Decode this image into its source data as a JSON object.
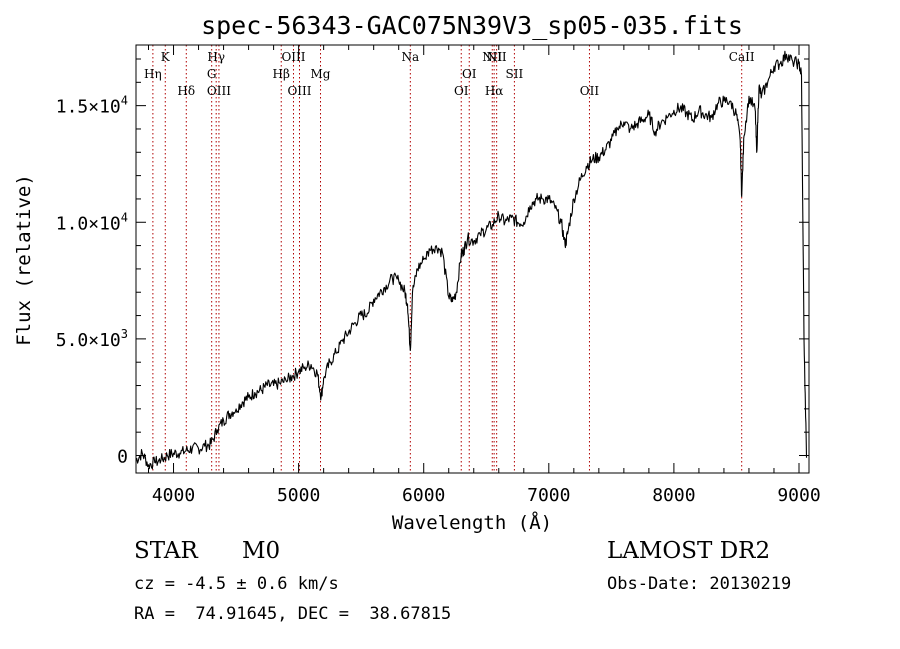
{
  "chart_data": {
    "type": "line",
    "title": "spec-56343-GAC075N39V3_sp05-035.fits",
    "xlabel": "Wavelength (Å)",
    "ylabel": "Flux (relative)",
    "xlim": [
      3700,
      9080
    ],
    "ylim": [
      -750,
      17600
    ],
    "x_ticks": [
      4000,
      5000,
      6000,
      7000,
      8000,
      9000
    ],
    "x_tick_labels": [
      "4000",
      "5000",
      "6000",
      "7000",
      "8000",
      "9000"
    ],
    "y_ticks": [
      0,
      5000,
      10000,
      15000
    ],
    "y_tick_labels": [
      {
        "base": "0",
        "exp": ""
      },
      {
        "base": "5.0×10",
        "exp": "3"
      },
      {
        "base": "1.0×10",
        "exp": "4"
      },
      {
        "base": "1.5×10",
        "exp": "4"
      }
    ],
    "grid": false,
    "line_color": "#000000",
    "marker_color": "#b00000",
    "spectrum": {
      "x": [
        3700,
        3750,
        3800,
        3850,
        3900,
        3950,
        4000,
        4050,
        4100,
        4150,
        4200,
        4250,
        4300,
        4350,
        4400,
        4450,
        4500,
        4550,
        4600,
        4650,
        4700,
        4750,
        4800,
        4850,
        4900,
        4950,
        5000,
        5050,
        5100,
        5150,
        5180,
        5200,
        5250,
        5300,
        5350,
        5400,
        5450,
        5500,
        5550,
        5600,
        5650,
        5700,
        5750,
        5800,
        5850,
        5870,
        5893,
        5910,
        5950,
        6000,
        6050,
        6100,
        6150,
        6200,
        6230,
        6260,
        6300,
        6320,
        6350,
        6400,
        6450,
        6500,
        6550,
        6600,
        6650,
        6700,
        6750,
        6800,
        6850,
        6900,
        6950,
        7000,
        7050,
        7100,
        7130,
        7150,
        7200,
        7250,
        7300,
        7350,
        7400,
        7450,
        7500,
        7550,
        7600,
        7650,
        7700,
        7750,
        7800,
        7850,
        7900,
        7950,
        8000,
        8050,
        8100,
        8150,
        8200,
        8250,
        8300,
        8350,
        8400,
        8450,
        8500,
        8530,
        8542,
        8560,
        8600,
        8650,
        8662,
        8680,
        8700,
        8750,
        8800,
        8850,
        8900,
        8950,
        9000,
        9020,
        9040,
        9060
      ],
      "y": [
        -200,
        100,
        -400,
        -300,
        -200,
        0,
        100,
        100,
        200,
        300,
        300,
        400,
        500,
        1100,
        1500,
        1800,
        2000,
        2300,
        2500,
        2700,
        2800,
        3000,
        3000,
        3100,
        3200,
        3400,
        3600,
        3800,
        3900,
        3500,
        2500,
        3300,
        4000,
        4400,
        4900,
        5300,
        5700,
        6000,
        6100,
        6700,
        7000,
        7300,
        7600,
        7500,
        7000,
        6500,
        4500,
        7000,
        8000,
        8400,
        8800,
        9000,
        8700,
        6800,
        6600,
        7000,
        8600,
        8800,
        9300,
        9200,
        9500,
        9700,
        9900,
        10300,
        10000,
        10200,
        10000,
        10000,
        10700,
        11000,
        11000,
        11000,
        10600,
        10000,
        9000,
        9500,
        11000,
        11800,
        12400,
        12700,
        12800,
        13100,
        13500,
        14000,
        14300,
        14000,
        14200,
        14400,
        14600,
        13900,
        14300,
        14500,
        14800,
        14900,
        14700,
        14400,
        14800,
        14600,
        14500,
        15100,
        15200,
        15200,
        14600,
        13500,
        11100,
        13700,
        15400,
        14800,
        13000,
        15800,
        15400,
        16000,
        16700,
        16800,
        17200,
        16900,
        16800,
        16300,
        5000,
        -100
      ]
    },
    "lines": [
      {
        "label": "Hη",
        "wavelength": 3835,
        "row": 2
      },
      {
        "label": "K",
        "wavelength": 3934,
        "row": 1
      },
      {
        "label": "Hδ",
        "wavelength": 4102,
        "row": 3
      },
      {
        "label": "Hγ",
        "wavelength": 4341,
        "row": 1
      },
      {
        "label": "G",
        "wavelength": 4305,
        "row": 2
      },
      {
        "label": "OIII",
        "wavelength": 4363,
        "row": 3
      },
      {
        "label": "Hβ",
        "wavelength": 4861,
        "row": 2
      },
      {
        "label": "OIII",
        "wavelength": 4959,
        "row": 1
      },
      {
        "label": "OIII",
        "wavelength": 5007,
        "row": 3
      },
      {
        "label": "Mg",
        "wavelength": 5175,
        "row": 2
      },
      {
        "label": "Na",
        "wavelength": 5893,
        "row": 1
      },
      {
        "label": "OI",
        "wavelength": 6300,
        "row": 3
      },
      {
        "label": "OI",
        "wavelength": 6364,
        "row": 2
      },
      {
        "label": "NII",
        "wavelength": 6548,
        "row": 1
      },
      {
        "label": "Hα",
        "wavelength": 6563,
        "row": 3
      },
      {
        "label": "NII",
        "wavelength": 6583,
        "row": 1
      },
      {
        "label": "SII",
        "wavelength": 6725,
        "row": 2
      },
      {
        "label": "OII",
        "wavelength": 7325,
        "row": 3
      },
      {
        "label": "CaII",
        "wavelength": 8542,
        "row": 1
      }
    ]
  },
  "footer": {
    "object_class": "STAR",
    "subclass": "M0",
    "cz": "cz = -4.5 ± 0.6 km/s",
    "coords": "RA =  74.91645, DEC =  38.67815",
    "survey": "LAMOST DR2",
    "obs_date": "Obs-Date: 20130219"
  }
}
